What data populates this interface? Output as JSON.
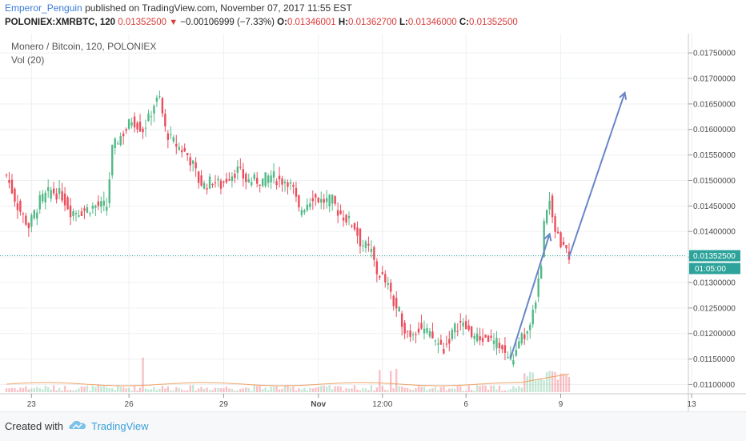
{
  "header": {
    "author": "Emperor_Penguin",
    "published_text": "published on TradingView.com, November 07, 2017 11:55 EST",
    "symbol": "POLONIEX:XMRBTC, 120",
    "last": "0.01352500",
    "change": "−0.00106999 (−7.33%)",
    "o_label": "O:",
    "o_value": "0.01346001",
    "h_label": "H:",
    "h_value": "0.01362700",
    "l_label": "L:",
    "l_value": "0.01346000",
    "c_label": "C:",
    "c_value": "0.01352500"
  },
  "footer": {
    "created_with": "Created with",
    "brand": "TradingView"
  },
  "colors": {
    "up": "#53b987",
    "down": "#eb4d5c",
    "drawing": "#6a86c8",
    "price_line": "#2ea39b"
  },
  "chart_data": {
    "type": "candlestick",
    "title": "Monero / Bitcoin, 120, POLONIEX",
    "indicator": "Vol (20)",
    "y_ticks": [
      "0.01100000",
      "0.01150000",
      "0.01200000",
      "0.01250000",
      "0.01300000",
      "0.01350000",
      "0.01400000",
      "0.01450000",
      "0.01500000",
      "0.01550000",
      "0.01600000",
      "0.01650000",
      "0.01700000",
      "0.01750000"
    ],
    "ylim": [
      0.01085,
      0.0178
    ],
    "x_ticks": [
      "23",
      "26",
      "29",
      "Nov",
      "12:00",
      "6",
      "9",
      "13"
    ],
    "x_tick_index": [
      9,
      44,
      78,
      112,
      135,
      165,
      199,
      246
    ],
    "current_price_label": "0.01352500",
    "countdown_label": "01:05:00",
    "current_price": 0.013525,
    "close_path": [
      [
        0,
        0.0151
      ],
      [
        4,
        0.0145
      ],
      [
        8,
        0.0141
      ],
      [
        12,
        0.0146
      ],
      [
        16,
        0.0148
      ],
      [
        20,
        0.0147
      ],
      [
        23,
        0.0144
      ],
      [
        27,
        0.0144
      ],
      [
        32,
        0.0145
      ],
      [
        36,
        0.0145
      ],
      [
        38,
        0.0156
      ],
      [
        40,
        0.0158
      ],
      [
        43,
        0.016
      ],
      [
        45,
        0.0162
      ],
      [
        47,
        0.0161
      ],
      [
        49,
        0.016
      ],
      [
        51,
        0.0162
      ],
      [
        53,
        0.0165
      ],
      [
        55,
        0.0166
      ],
      [
        57,
        0.016
      ],
      [
        59,
        0.0158
      ],
      [
        61,
        0.0157
      ],
      [
        63,
        0.0156
      ],
      [
        65,
        0.0155
      ],
      [
        67,
        0.0153
      ],
      [
        69,
        0.015
      ],
      [
        71,
        0.0149
      ],
      [
        74,
        0.015
      ],
      [
        77,
        0.0149
      ],
      [
        80,
        0.0151
      ],
      [
        83,
        0.0152
      ],
      [
        86,
        0.015
      ],
      [
        89,
        0.015
      ],
      [
        92,
        0.015
      ],
      [
        95,
        0.0151
      ],
      [
        98,
        0.015
      ],
      [
        101,
        0.015
      ],
      [
        103,
        0.0148
      ],
      [
        105,
        0.0144
      ],
      [
        107,
        0.0145
      ],
      [
        110,
        0.0147
      ],
      [
        113,
        0.0146
      ],
      [
        117,
        0.0146
      ],
      [
        119,
        0.0144
      ],
      [
        121,
        0.0143
      ],
      [
        123,
        0.0142
      ],
      [
        125,
        0.0141
      ],
      [
        127,
        0.0138
      ],
      [
        129,
        0.0137
      ],
      [
        131,
        0.0136
      ],
      [
        133,
        0.0132
      ],
      [
        135,
        0.0131
      ],
      [
        137,
        0.0129
      ],
      [
        139,
        0.0126
      ],
      [
        141,
        0.0124
      ],
      [
        143,
        0.0121
      ],
      [
        145,
        0.012
      ],
      [
        147,
        0.0121
      ],
      [
        149,
        0.0121
      ],
      [
        151,
        0.012
      ],
      [
        153,
        0.0119
      ],
      [
        155,
        0.0118
      ],
      [
        157,
        0.0117
      ],
      [
        159,
        0.0119
      ],
      [
        161,
        0.0121
      ],
      [
        163,
        0.0122
      ],
      [
        165,
        0.0121
      ],
      [
        167,
        0.012
      ],
      [
        169,
        0.0119
      ],
      [
        171,
        0.0119
      ],
      [
        173,
        0.0119
      ],
      [
        175,
        0.0118
      ],
      [
        177,
        0.0118
      ],
      [
        179,
        0.0116
      ],
      [
        181,
        0.0115
      ],
      [
        183,
        0.0116
      ],
      [
        185,
        0.0119
      ],
      [
        187,
        0.012
      ],
      [
        189,
        0.0124
      ],
      [
        191,
        0.013
      ],
      [
        192,
        0.0134
      ],
      [
        193,
        0.0142
      ],
      [
        194,
        0.0145
      ],
      [
        195,
        0.0146
      ],
      [
        196,
        0.0142
      ],
      [
        197,
        0.014
      ],
      [
        198,
        0.0139
      ],
      [
        199,
        0.0138
      ],
      [
        200,
        0.0137
      ],
      [
        201,
        0.01356
      ],
      [
        202,
        0.013525
      ]
    ],
    "volume_max": 0.25,
    "drawing_lines": [
      {
        "name": "trend-arrow-1",
        "x1": 181,
        "y1": 0.01152,
        "x2": 195,
        "y2": 0.01395
      },
      {
        "name": "trend-arrow-2",
        "x1": 202,
        "y1": 0.0135,
        "x2": 222,
        "y2": 0.01672
      }
    ]
  }
}
